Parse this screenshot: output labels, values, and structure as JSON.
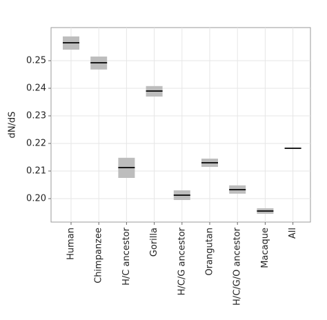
{
  "chart_data": {
    "type": "crossbar",
    "y_label": "dN/dS",
    "categories": [
      "Human",
      "Chimpanzee",
      "H/C ancestor",
      "Gorilla",
      "H/C/G ancestor",
      "Orangutan",
      "H/C/G/O ancestor",
      "Macaque",
      "All"
    ],
    "values": [
      0.2565,
      0.24925,
      0.21125,
      0.239,
      0.20125,
      0.213,
      0.20325,
      0.1955,
      0.21825
    ],
    "lower": [
      0.254,
      0.2468,
      0.2075,
      0.237,
      0.1995,
      0.2115,
      0.2018,
      0.1945,
      0.2181
    ],
    "upper": [
      0.2588,
      0.2515,
      0.2148,
      0.2408,
      0.203,
      0.2145,
      0.2048,
      0.1965,
      0.2184
    ],
    "color": "#000000",
    "range_color": "#bdbdbd",
    "ylim": [
      0.1915,
      0.262
    ],
    "yticks": [
      {
        "value": 0.2,
        "label": "0.20"
      },
      0.21,
      0.22,
      0.23,
      0.24,
      0.25
    ],
    "grid": true
  }
}
